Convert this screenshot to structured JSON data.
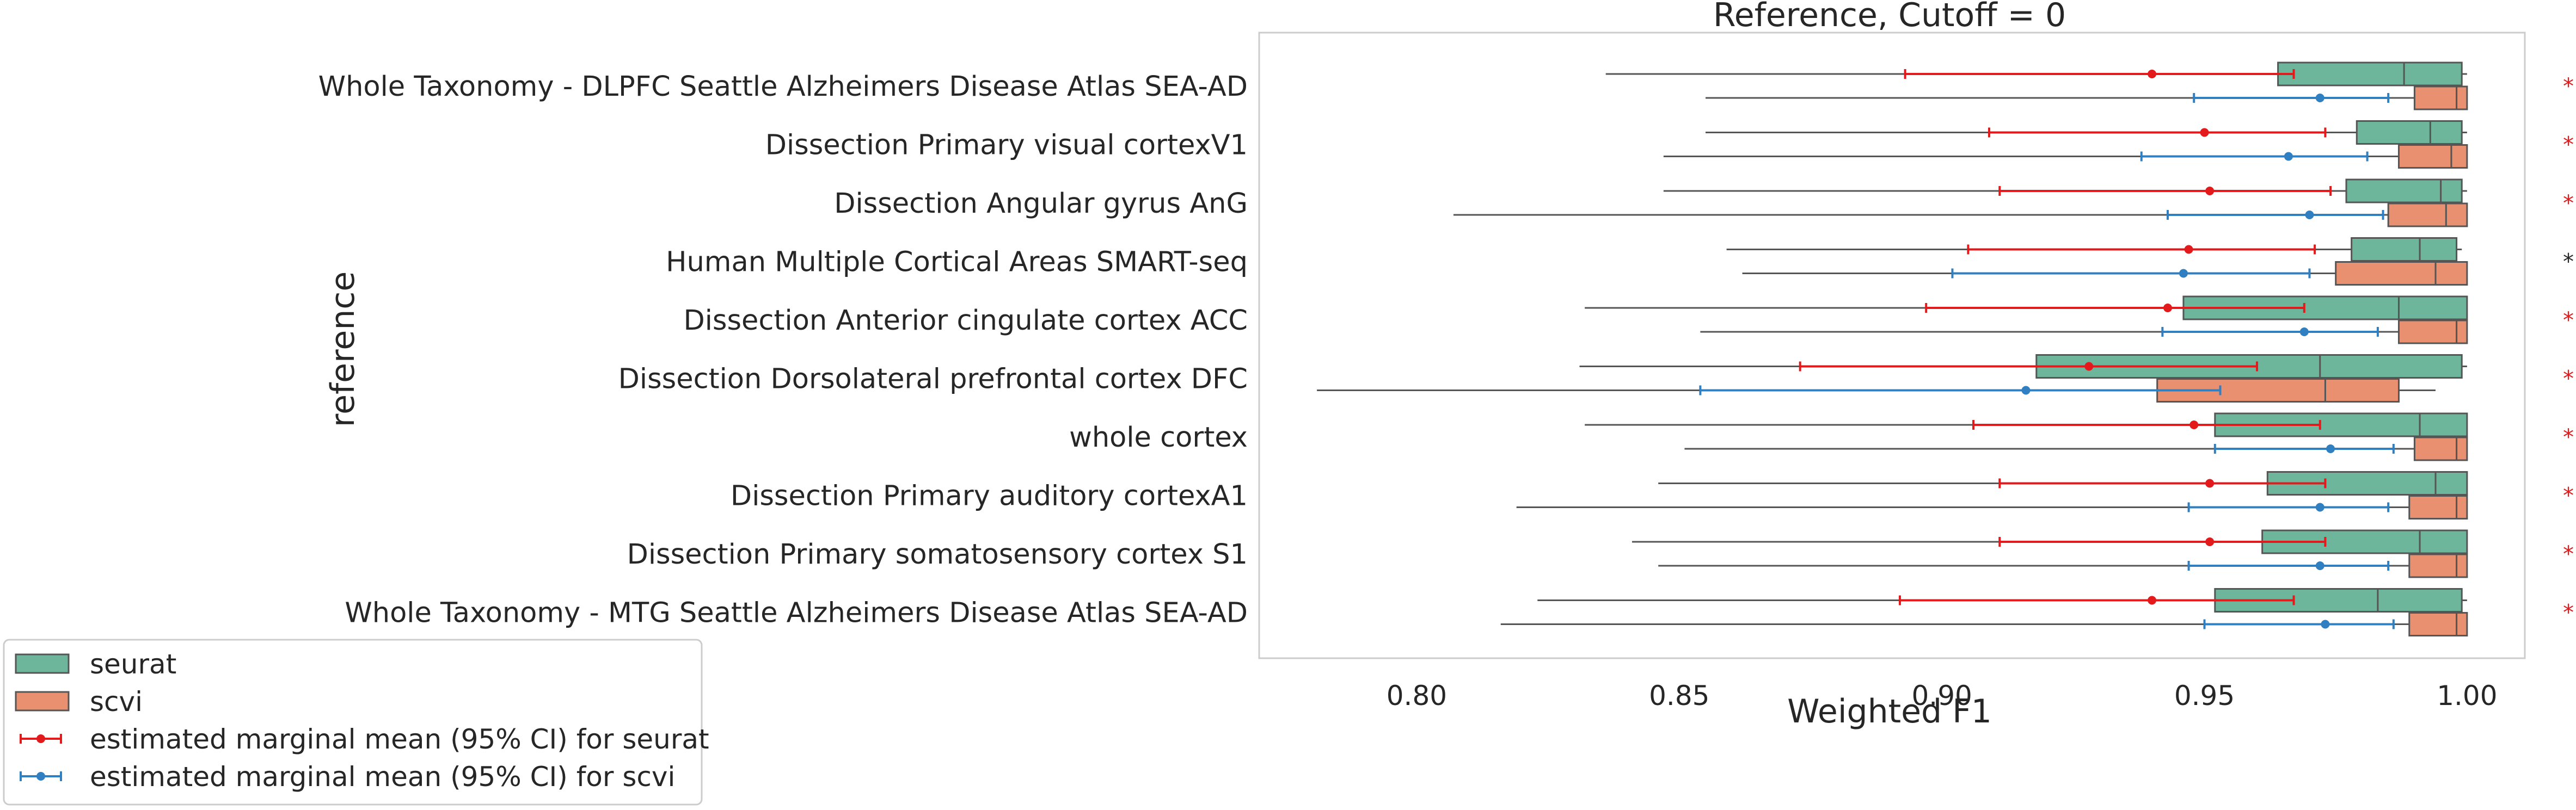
{
  "chart_data": {
    "type": "box",
    "title": "Reference, Cutoff = 0",
    "xlabel": "Weighted F1",
    "ylabel": "reference",
    "xlim": [
      0.77,
      1.011
    ],
    "xticks": [
      "0.80",
      "0.85",
      "0.90",
      "0.95",
      "1.00"
    ],
    "xtick_values": [
      0.8,
      0.85,
      0.9,
      0.95,
      1.0
    ],
    "grid": false,
    "legend_position": "bottom-left",
    "colors": {
      "seurat_box": "#6db59b",
      "scvi_box": "#e8906f",
      "seurat_mean": "#e31a1c",
      "scvi_mean": "#2f7fc1",
      "star_significant": "#e31a1c",
      "star_other": "#262626",
      "box_edge": "#555555"
    },
    "legend": [
      {
        "label": "seurat",
        "kind": "box",
        "color": "#6db59b"
      },
      {
        "label": "scvi",
        "kind": "box",
        "color": "#e8906f"
      },
      {
        "label": "estimated marginal mean (95% CI) for seurat",
        "kind": "errorbar",
        "color": "#e31a1c"
      },
      {
        "label": "estimated marginal mean (95% CI) for scvi",
        "kind": "errorbar",
        "color": "#2f7fc1"
      }
    ],
    "categories": [
      "Whole Taxonomy - DLPFC Seattle Alzheimers Disease Atlas SEA-AD",
      "Dissection Primary visual cortexV1",
      "Dissection Angular gyrus AnG",
      "Human Multiple Cortical Areas SMART-seq",
      "Dissection Anterior cingulate cortex ACC",
      "Dissection Dorsolateral prefrontal cortex DFC",
      "whole cortex",
      "Dissection Primary auditory cortexA1",
      "Dissection Primary somatosensory cortex S1",
      "Whole Taxonomy - MTG Seattle Alzheimers Disease Atlas SEA-AD"
    ],
    "series": [
      {
        "name": "seurat",
        "boxes": [
          {
            "min": 0.836,
            "q1": 0.964,
            "median": 0.988,
            "q3": 0.999,
            "max": 1.0
          },
          {
            "min": 0.855,
            "q1": 0.979,
            "median": 0.993,
            "q3": 0.999,
            "max": 1.0
          },
          {
            "min": 0.847,
            "q1": 0.977,
            "median": 0.995,
            "q3": 0.999,
            "max": 1.0
          },
          {
            "min": 0.859,
            "q1": 0.978,
            "median": 0.991,
            "q3": 0.998,
            "max": 0.999
          },
          {
            "min": 0.832,
            "q1": 0.946,
            "median": 0.987,
            "q3": 1.0,
            "max": 1.0
          },
          {
            "min": 0.831,
            "q1": 0.918,
            "median": 0.972,
            "q3": 0.999,
            "max": 1.0
          },
          {
            "min": 0.832,
            "q1": 0.952,
            "median": 0.991,
            "q3": 1.0,
            "max": 1.0
          },
          {
            "min": 0.846,
            "q1": 0.962,
            "median": 0.994,
            "q3": 1.0,
            "max": 1.0
          },
          {
            "min": 0.841,
            "q1": 0.961,
            "median": 0.991,
            "q3": 1.0,
            "max": 1.0
          },
          {
            "min": 0.823,
            "q1": 0.952,
            "median": 0.983,
            "q3": 0.999,
            "max": 1.0
          }
        ],
        "means": [
          {
            "mean": 0.94,
            "ci_low": 0.893,
            "ci_high": 0.967
          },
          {
            "mean": 0.95,
            "ci_low": 0.909,
            "ci_high": 0.973
          },
          {
            "mean": 0.951,
            "ci_low": 0.911,
            "ci_high": 0.974
          },
          {
            "mean": 0.947,
            "ci_low": 0.905,
            "ci_high": 0.971
          },
          {
            "mean": 0.943,
            "ci_low": 0.897,
            "ci_high": 0.969
          },
          {
            "mean": 0.928,
            "ci_low": 0.873,
            "ci_high": 0.96
          },
          {
            "mean": 0.948,
            "ci_low": 0.906,
            "ci_high": 0.972
          },
          {
            "mean": 0.951,
            "ci_low": 0.911,
            "ci_high": 0.973
          },
          {
            "mean": 0.951,
            "ci_low": 0.911,
            "ci_high": 0.973
          },
          {
            "mean": 0.94,
            "ci_low": 0.892,
            "ci_high": 0.967
          }
        ]
      },
      {
        "name": "scvi",
        "boxes": [
          {
            "min": 0.855,
            "q1": 0.99,
            "median": 0.998,
            "q3": 1.0,
            "max": 1.0
          },
          {
            "min": 0.847,
            "q1": 0.987,
            "median": 0.997,
            "q3": 1.0,
            "max": 1.0
          },
          {
            "min": 0.807,
            "q1": 0.985,
            "median": 0.996,
            "q3": 1.0,
            "max": 1.0
          },
          {
            "min": 0.862,
            "q1": 0.975,
            "median": 0.994,
            "q3": 1.0,
            "max": 1.0
          },
          {
            "min": 0.854,
            "q1": 0.987,
            "median": 0.998,
            "q3": 1.0,
            "max": 1.0
          },
          {
            "min": 0.781,
            "q1": 0.941,
            "median": 0.973,
            "q3": 0.987,
            "max": 0.994
          },
          {
            "min": 0.851,
            "q1": 0.99,
            "median": 0.998,
            "q3": 1.0,
            "max": 1.0
          },
          {
            "min": 0.819,
            "q1": 0.989,
            "median": 0.998,
            "q3": 1.0,
            "max": 1.0
          },
          {
            "min": 0.846,
            "q1": 0.989,
            "median": 0.998,
            "q3": 1.0,
            "max": 1.0
          },
          {
            "min": 0.816,
            "q1": 0.989,
            "median": 0.998,
            "q3": 1.0,
            "max": 1.0
          }
        ],
        "means": [
          {
            "mean": 0.972,
            "ci_low": 0.948,
            "ci_high": 0.985
          },
          {
            "mean": 0.966,
            "ci_low": 0.938,
            "ci_high": 0.981
          },
          {
            "mean": 0.97,
            "ci_low": 0.943,
            "ci_high": 0.984
          },
          {
            "mean": 0.946,
            "ci_low": 0.902,
            "ci_high": 0.97
          },
          {
            "mean": 0.969,
            "ci_low": 0.942,
            "ci_high": 0.983
          },
          {
            "mean": 0.916,
            "ci_low": 0.854,
            "ci_high": 0.953
          },
          {
            "mean": 0.974,
            "ci_low": 0.952,
            "ci_high": 0.986
          },
          {
            "mean": 0.972,
            "ci_low": 0.947,
            "ci_high": 0.985
          },
          {
            "mean": 0.972,
            "ci_low": 0.947,
            "ci_high": 0.985
          },
          {
            "mean": 0.973,
            "ci_low": 0.95,
            "ci_high": 0.986
          }
        ]
      }
    ],
    "annotations": [
      {
        "text": "*",
        "color": "#e31a1c"
      },
      {
        "text": "*",
        "color": "#e31a1c"
      },
      {
        "text": "*",
        "color": "#e31a1c"
      },
      {
        "text": "*",
        "color": "#262626"
      },
      {
        "text": "*",
        "color": "#e31a1c"
      },
      {
        "text": "*",
        "color": "#e31a1c"
      },
      {
        "text": "*",
        "color": "#e31a1c"
      },
      {
        "text": "*",
        "color": "#e31a1c"
      },
      {
        "text": "*",
        "color": "#e31a1c"
      },
      {
        "text": "*",
        "color": "#e31a1c"
      }
    ]
  }
}
